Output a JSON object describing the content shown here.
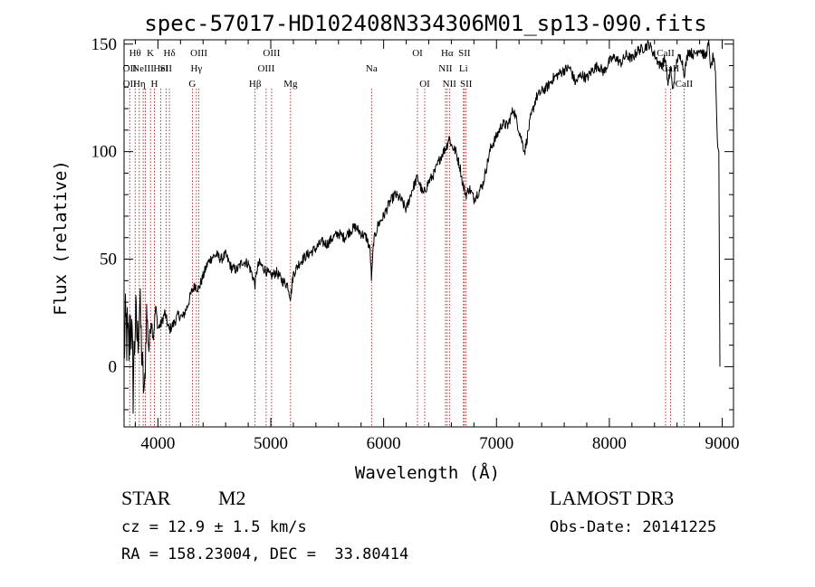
{
  "chart_data": {
    "type": "line",
    "title": "spec-57017-HD102408N334306M01_sp13-090.fits",
    "xlabel": "Wavelength (Å)",
    "ylabel": "Flux (relative)",
    "xlim": [
      3700,
      9100
    ],
    "ylim": [
      -28,
      152
    ],
    "xticks": [
      4000,
      5000,
      6000,
      7000,
      8000,
      9000
    ],
    "yticks": [
      0,
      50,
      100,
      150
    ],
    "grid": false,
    "series": [
      {
        "x": [
          3700,
          3720,
          3740,
          3760,
          3780,
          3800,
          3820,
          3840,
          3860,
          3880,
          3900,
          3920,
          3940,
          3960,
          3980,
          4000,
          4030,
          4060,
          4100,
          4140,
          4180,
          4220,
          4260,
          4300,
          4330,
          4360,
          4400,
          4440,
          4480,
          4520,
          4560,
          4600,
          4650,
          4700,
          4750,
          4800,
          4840,
          4861,
          4880,
          4900,
          4950,
          5000,
          5050,
          5100,
          5150,
          5175,
          5200,
          5250,
          5300,
          5350,
          5400,
          5450,
          5500,
          5550,
          5600,
          5650,
          5700,
          5750,
          5800,
          5850,
          5880,
          5893,
          5910,
          5950,
          6000,
          6050,
          6100,
          6150,
          6200,
          6250,
          6300,
          6350,
          6400,
          6450,
          6500,
          6530,
          6563,
          6580,
          6600,
          6640,
          6680,
          6700,
          6730,
          6760,
          6800,
          6850,
          6880,
          6900,
          6950,
          7000,
          7050,
          7100,
          7150,
          7200,
          7250,
          7300,
          7350,
          7400,
          7450,
          7500,
          7550,
          7600,
          7650,
          7700,
          7750,
          7800,
          7850,
          7900,
          7950,
          8000,
          8050,
          8100,
          8150,
          8200,
          8250,
          8300,
          8350,
          8400,
          8450,
          8498,
          8520,
          8542,
          8560,
          8600,
          8640,
          8662,
          8700,
          8750,
          8800,
          8850,
          8880,
          8900,
          8920,
          8940,
          8960,
          8980
        ],
        "y": [
          10,
          18,
          5,
          25,
          -8,
          22,
          12,
          30,
          2,
          -15,
          26,
          8,
          22,
          14,
          28,
          18,
          20,
          25,
          17,
          20,
          24,
          23,
          28,
          35,
          38,
          36,
          42,
          48,
          51,
          52,
          50,
          52,
          46,
          45,
          49,
          48,
          42,
          38,
          46,
          48,
          45,
          42,
          44,
          40,
          38,
          32,
          43,
          48,
          51,
          53,
          55,
          58,
          57,
          60,
          62,
          60,
          63,
          65,
          62,
          60,
          54,
          40,
          58,
          66,
          70,
          76,
          80,
          78,
          73,
          82,
          88,
          80,
          86,
          90,
          97,
          100,
          103,
          107,
          103,
          100,
          92,
          85,
          80,
          83,
          78,
          82,
          85,
          90,
          102,
          107,
          113,
          112,
          120,
          110,
          100,
          115,
          125,
          128,
          130,
          134,
          136,
          138,
          139,
          132,
          136,
          134,
          138,
          140,
          137,
          142,
          144,
          141,
          145,
          143,
          147,
          148,
          150,
          145,
          140,
          143,
          130,
          140,
          128,
          143,
          144,
          136,
          147,
          145,
          148,
          144,
          150,
          138,
          145,
          135,
          100,
          0
        ],
        "noise": [
          12,
          12,
          12,
          11,
          11,
          10,
          9,
          8,
          7,
          6,
          5,
          4,
          3,
          3,
          2,
          2,
          2,
          2,
          2,
          2,
          2,
          2,
          2,
          2,
          2,
          2,
          2,
          2,
          2,
          2,
          2,
          2,
          2,
          2,
          2,
          2,
          2,
          2,
          2,
          2,
          2,
          2,
          2,
          2,
          2,
          2,
          2,
          2,
          2,
          2,
          2,
          2,
          2,
          2,
          2,
          2,
          2,
          2,
          2,
          2,
          2,
          2,
          2,
          2,
          2,
          2,
          2,
          2,
          2,
          2,
          2,
          2,
          2,
          2,
          2,
          2,
          2,
          2,
          2,
          2,
          2,
          2,
          2,
          2,
          2,
          2,
          2,
          2,
          2,
          2,
          2,
          2,
          2,
          2,
          2,
          2,
          2,
          2,
          2,
          2,
          2,
          2,
          2,
          2,
          2,
          2,
          2,
          2,
          2,
          2,
          2,
          2,
          2,
          2,
          2,
          2,
          2,
          2,
          2,
          2,
          2,
          2,
          2,
          2,
          2,
          2,
          2,
          2,
          2,
          2,
          2,
          2,
          2,
          2,
          2,
          2
        ]
      }
    ],
    "lines": [
      {
        "x": 3750,
        "labels": [
          "",
          "OII",
          "OII"
        ]
      },
      {
        "x": 3798,
        "labels": [
          "Hθ",
          "",
          ""
        ]
      },
      {
        "x": 3835,
        "labels": [
          "",
          "",
          "Hη"
        ]
      },
      {
        "x": 3869,
        "labels": [
          "",
          "NeIII",
          ""
        ]
      },
      {
        "x": 3889,
        "labels": [
          "",
          "",
          ""
        ]
      },
      {
        "x": 3934,
        "labels": [
          "K",
          "",
          ""
        ]
      },
      {
        "x": 3969,
        "labels": [
          "",
          "",
          "H"
        ]
      },
      {
        "x": 4026,
        "labels": [
          "",
          "HeI",
          ""
        ]
      },
      {
        "x": 4072,
        "labels": [
          "",
          "SII",
          ""
        ]
      },
      {
        "x": 4102,
        "labels": [
          "Hδ",
          "",
          ""
        ]
      },
      {
        "x": 4305,
        "labels": [
          "",
          "",
          "G"
        ]
      },
      {
        "x": 4341,
        "labels": [
          "",
          "Hγ",
          ""
        ]
      },
      {
        "x": 4363,
        "labels": [
          "OIII",
          "",
          ""
        ]
      },
      {
        "x": 4861,
        "labels": [
          "",
          "",
          "Hβ"
        ]
      },
      {
        "x": 4959,
        "labels": [
          "",
          "OIII",
          ""
        ]
      },
      {
        "x": 5007,
        "labels": [
          "OIII",
          "",
          ""
        ]
      },
      {
        "x": 5175,
        "labels": [
          "",
          "",
          "Mg"
        ]
      },
      {
        "x": 5893,
        "labels": [
          "",
          "Na",
          ""
        ]
      },
      {
        "x": 6300,
        "labels": [
          "OI",
          "",
          ""
        ]
      },
      {
        "x": 6364,
        "labels": [
          "",
          "",
          "OI"
        ]
      },
      {
        "x": 6548,
        "labels": [
          "",
          "NII",
          ""
        ]
      },
      {
        "x": 6563,
        "labels": [
          "Hα",
          "",
          ""
        ]
      },
      {
        "x": 6583,
        "labels": [
          "",
          "",
          "NII"
        ]
      },
      {
        "x": 6707,
        "labels": [
          "",
          "Li",
          ""
        ]
      },
      {
        "x": 6716,
        "labels": [
          "SII",
          "",
          ""
        ]
      },
      {
        "x": 6731,
        "labels": [
          "",
          "",
          "SII"
        ]
      },
      {
        "x": 8498,
        "labels": [
          "CaII",
          "",
          ""
        ]
      },
      {
        "x": 8542,
        "labels": [
          "",
          "CaII",
          ""
        ]
      },
      {
        "x": 8662,
        "labels": [
          "",
          "",
          "CaII"
        ]
      }
    ]
  },
  "info": {
    "object_class": "STAR",
    "subclass": "M2",
    "survey": "LAMOST DR3",
    "cz_line": "cz = 12.9 ± 1.5 km/s",
    "obs_date_line": "Obs-Date: 20141225",
    "radec_line": "RA = 158.23004, DEC =  33.80414"
  }
}
